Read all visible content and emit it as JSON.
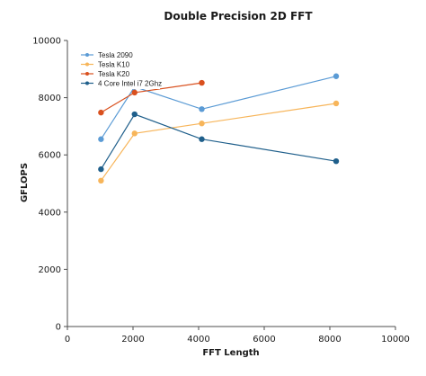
{
  "chart_data": {
    "type": "line",
    "title": "Double Precision 2D FFT",
    "xlabel": "FFT Length",
    "ylabel": "GFLOPS",
    "xlim": [
      0,
      10000
    ],
    "ylim": [
      0,
      10000
    ],
    "x_ticks": [
      "0",
      "2000",
      "4000",
      "6000",
      "8000",
      "10000"
    ],
    "y_ticks": [
      "0",
      "2000",
      "4000",
      "6000",
      "8000",
      "10000"
    ],
    "grid": false,
    "legend_position": "top-left",
    "series": [
      {
        "name": "Tesla 2090",
        "color": "#5B9BD5",
        "x": [
          1024,
          2048,
          4096,
          8192
        ],
        "y": [
          6550,
          8380,
          7600,
          8750
        ]
      },
      {
        "name": "Tesla K10",
        "color": "#F7B55A",
        "x": [
          1024,
          2048,
          4096,
          8192
        ],
        "y": [
          5100,
          6750,
          7100,
          7800
        ]
      },
      {
        "name": "Tesla K20",
        "color": "#D9501E",
        "x": [
          1024,
          2048,
          4096
        ],
        "y": [
          7480,
          8180,
          8520
        ]
      },
      {
        "name": "4 Core Intel i7 2Ghz",
        "color": "#1F5F8B",
        "x": [
          1024,
          2048,
          4096,
          8192
        ],
        "y": [
          5500,
          7420,
          6550,
          5780
        ]
      }
    ]
  }
}
